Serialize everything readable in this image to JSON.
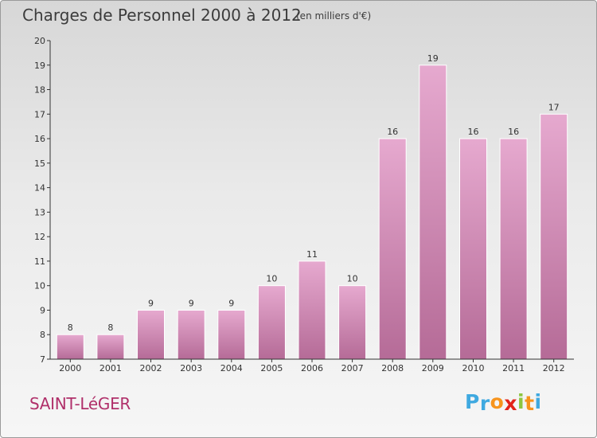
{
  "title": "Charges de Personnel 2000 à 2012",
  "unit_note": "(en milliers d'€)",
  "commune": "SAINT-LéGER",
  "logo": {
    "letters": [
      "P",
      "r",
      "o",
      "x",
      "i",
      "t",
      "i"
    ],
    "colors": [
      "#3fa9e0",
      "#3fa9e0",
      "#f7941d",
      "#e2231a",
      "#8dc63f",
      "#f7941d",
      "#3fa9e0"
    ]
  },
  "colors": {
    "bar_light": "#e6a9cf",
    "bar_dark": "#b56b97",
    "bar_edge": "#ffffff",
    "axis": "#333333"
  },
  "chart_data": {
    "type": "bar",
    "categories": [
      "2000",
      "2001",
      "2002",
      "2003",
      "2004",
      "2005",
      "2006",
      "2007",
      "2008",
      "2009",
      "2010",
      "2011",
      "2012"
    ],
    "values": [
      8,
      8,
      9,
      9,
      9,
      10,
      11,
      10,
      16,
      19,
      16,
      16,
      17
    ],
    "ylim": [
      7,
      20
    ],
    "yticks": [
      7,
      8,
      9,
      10,
      11,
      12,
      13,
      14,
      15,
      16,
      17,
      18,
      19,
      20
    ],
    "grid": false,
    "data_labels": true
  }
}
